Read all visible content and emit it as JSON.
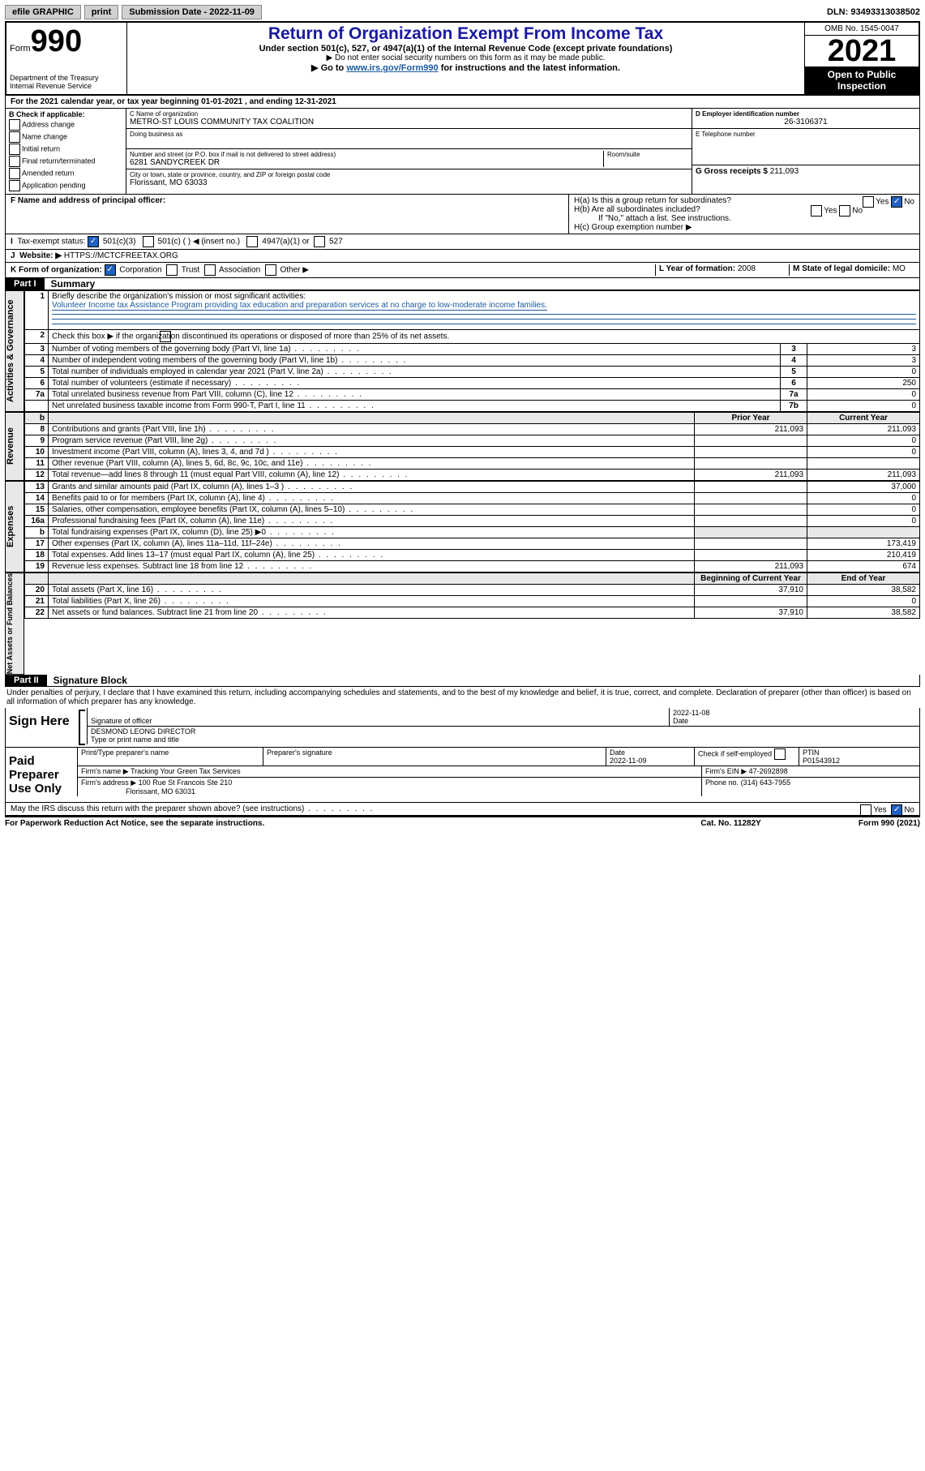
{
  "topbar": {
    "efile": "efile GRAPHIC",
    "print": "print",
    "sub_label": "Submission Date - 2022-11-09",
    "dln": "DLN: 93493313038502"
  },
  "header": {
    "form_word": "Form",
    "form_num": "990",
    "dept": "Department of the Treasury",
    "irs": "Internal Revenue Service",
    "title": "Return of Organization Exempt From Income Tax",
    "sub1": "Under section 501(c), 527, or 4947(a)(1) of the Internal Revenue Code (except private foundations)",
    "sub2": "▶ Do not enter social security numbers on this form as it may be made public.",
    "sub3_pre": "▶ Go to ",
    "sub3_link": "www.irs.gov/Form990",
    "sub3_post": " for instructions and the latest information.",
    "omb": "OMB No. 1545-0047",
    "year": "2021",
    "open": "Open to Public Inspection"
  },
  "lineA": "For the 2021 calendar year, or tax year beginning 01-01-2021   , and ending 12-31-2021",
  "boxB": {
    "label": "B Check if applicable:",
    "items": [
      "Address change",
      "Name change",
      "Initial return",
      "Final return/terminated",
      "Amended return",
      "Application pending"
    ]
  },
  "boxC": {
    "name_lbl": "C Name of organization",
    "name": "METRO-ST LOUIS COMMUNITY TAX COALITION",
    "dba_lbl": "Doing business as",
    "addr_lbl": "Number and street (or P.O. box if mail is not delivered to street address)",
    "addr": "6281 SANDYCREEK DR",
    "room_lbl": "Room/suite",
    "city_lbl": "City or town, state or province, country, and ZIP or foreign postal code",
    "city": "Florissant, MO  63033"
  },
  "boxD": {
    "lbl": "D Employer identification number",
    "val": "26-3106371"
  },
  "boxE": {
    "lbl": "E Telephone number",
    "val": ""
  },
  "boxG": {
    "lbl": "G Gross receipts $",
    "val": "211,093"
  },
  "boxF": {
    "lbl": "F  Name and address of principal officer:"
  },
  "boxH": {
    "a_lbl": "H(a)  Is this a group return for subordinates?",
    "b_lbl": "H(b)  Are all subordinates included?",
    "b_note": "If \"No,\" attach a list. See instructions.",
    "c_lbl": "H(c)  Group exemption number ▶",
    "yes": "Yes",
    "no": "No"
  },
  "boxI": {
    "lbl": "Tax-exempt status:",
    "opts": [
      "501(c)(3)",
      "501(c) (   ) ◀ (insert no.)",
      "4947(a)(1) or",
      "527"
    ]
  },
  "boxJ": {
    "lbl": "Website: ▶",
    "val": "HTTPS://MCTCFREETAX.ORG"
  },
  "boxK": {
    "lbl": "K Form of organization:",
    "opts": [
      "Corporation",
      "Trust",
      "Association",
      "Other ▶"
    ]
  },
  "boxL": {
    "lbl": "L Year of formation:",
    "val": "2008"
  },
  "boxM": {
    "lbl": "M State of legal domicile:",
    "val": "MO"
  },
  "part1": {
    "hdr": "Part I",
    "title": "Summary"
  },
  "summary": {
    "l1_lbl": "Briefly describe the organization's mission or most significant activities:",
    "l1_val": "Volunteer Income tax Assistance Program providing tax education and preparation services at no charge to low-moderate income families.",
    "l2": "Check this box ▶        if the organization discontinued its operations or disposed of more than 25% of its net assets.",
    "rows_gov": [
      {
        "n": "3",
        "d": "Number of voting members of the governing body (Part VI, line 1a)",
        "b": "3",
        "v": "3"
      },
      {
        "n": "4",
        "d": "Number of independent voting members of the governing body (Part VI, line 1b)",
        "b": "4",
        "v": "3"
      },
      {
        "n": "5",
        "d": "Total number of individuals employed in calendar year 2021 (Part V, line 2a)",
        "b": "5",
        "v": "0"
      },
      {
        "n": "6",
        "d": "Total number of volunteers (estimate if necessary)",
        "b": "6",
        "v": "250"
      },
      {
        "n": "7a",
        "d": "Total unrelated business revenue from Part VIII, column (C), line 12",
        "b": "7a",
        "v": "0"
      },
      {
        "n": "",
        "d": "Net unrelated business taxable income from Form 990-T, Part I, line 11",
        "b": "7b",
        "v": "0"
      }
    ],
    "col_prior": "Prior Year",
    "col_curr": "Current Year",
    "rows_rev": [
      {
        "n": "8",
        "d": "Contributions and grants (Part VIII, line 1h)",
        "p": "211,093",
        "c": "211,093"
      },
      {
        "n": "9",
        "d": "Program service revenue (Part VIII, line 2g)",
        "p": "",
        "c": "0"
      },
      {
        "n": "10",
        "d": "Investment income (Part VIII, column (A), lines 3, 4, and 7d )",
        "p": "",
        "c": "0"
      },
      {
        "n": "11",
        "d": "Other revenue (Part VIII, column (A), lines 5, 6d, 8c, 9c, 10c, and 11e)",
        "p": "",
        "c": ""
      },
      {
        "n": "12",
        "d": "Total revenue—add lines 8 through 11 (must equal Part VIII, column (A), line 12)",
        "p": "211,093",
        "c": "211,093"
      }
    ],
    "rows_exp": [
      {
        "n": "13",
        "d": "Grants and similar amounts paid (Part IX, column (A), lines 1–3 )",
        "p": "",
        "c": "37,000"
      },
      {
        "n": "14",
        "d": "Benefits paid to or for members (Part IX, column (A), line 4)",
        "p": "",
        "c": "0"
      },
      {
        "n": "15",
        "d": "Salaries, other compensation, employee benefits (Part IX, column (A), lines 5–10)",
        "p": "",
        "c": "0"
      },
      {
        "n": "16a",
        "d": "Professional fundraising fees (Part IX, column (A), line 11e)",
        "p": "",
        "c": "0"
      },
      {
        "n": "b",
        "d": "Total fundraising expenses (Part IX, column (D), line 25) ▶0",
        "p": "shade",
        "c": "shade"
      },
      {
        "n": "17",
        "d": "Other expenses (Part IX, column (A), lines 11a–11d, 11f–24e)",
        "p": "",
        "c": "173,419"
      },
      {
        "n": "18",
        "d": "Total expenses. Add lines 13–17 (must equal Part IX, column (A), line 25)",
        "p": "",
        "c": "210,419"
      },
      {
        "n": "19",
        "d": "Revenue less expenses. Subtract line 18 from line 12",
        "p": "211,093",
        "c": "674"
      }
    ],
    "col_begin": "Beginning of Current Year",
    "col_end": "End of Year",
    "rows_na": [
      {
        "n": "20",
        "d": "Total assets (Part X, line 16)",
        "p": "37,910",
        "c": "38,582"
      },
      {
        "n": "21",
        "d": "Total liabilities (Part X, line 26)",
        "p": "",
        "c": "0"
      },
      {
        "n": "22",
        "d": "Net assets or fund balances. Subtract line 21 from line 20",
        "p": "37,910",
        "c": "38,582"
      }
    ],
    "side_gov": "Activities & Governance",
    "side_rev": "Revenue",
    "side_exp": "Expenses",
    "side_na": "Net Assets or Fund Balances"
  },
  "part2": {
    "hdr": "Part II",
    "title": "Signature Block"
  },
  "sig": {
    "decl": "Under penalties of perjury, I declare that I have examined this return, including accompanying schedules and statements, and to the best of my knowledge and belief, it is true, correct, and complete. Declaration of preparer (other than officer) is based on all information of which preparer has any knowledge.",
    "sign_here": "Sign Here",
    "sig_officer_lbl": "Signature of officer",
    "date_lbl": "Date",
    "sig_date": "2022-11-08",
    "name_lbl": "Type or print name and title",
    "name": "DESMOND LEONG  DIRECTOR",
    "paid": "Paid Preparer Use Only",
    "prep_name_lbl": "Print/Type preparer's name",
    "prep_sig_lbl": "Preparer's signature",
    "prep_date_lbl": "Date",
    "prep_date": "2022-11-09",
    "self_lbl": "Check         if self-employed",
    "ptin_lbl": "PTIN",
    "ptin": "P01543912",
    "firm_name_lbl": "Firm's name    ▶",
    "firm_name": "Tracking Your Green Tax Services",
    "firm_ein_lbl": "Firm's EIN ▶",
    "firm_ein": "47-2692898",
    "firm_addr_lbl": "Firm's address ▶",
    "firm_addr": "100 Rue St Francois Ste 210",
    "firm_city": "Florissant, MO  63031",
    "phone_lbl": "Phone no.",
    "phone": "(314) 643-7955",
    "discuss": "May the IRS discuss this return with the preparer shown above? (see instructions)"
  },
  "footer": {
    "pra": "For Paperwork Reduction Act Notice, see the separate instructions.",
    "cat": "Cat. No. 11282Y",
    "form": "Form 990 (2021)"
  }
}
